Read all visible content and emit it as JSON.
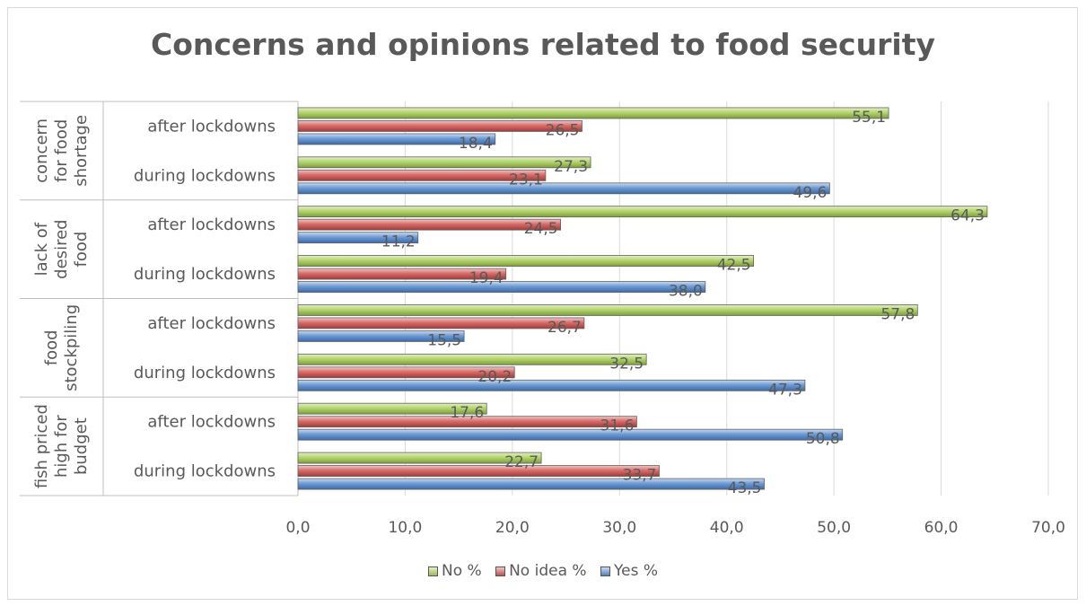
{
  "chart_data": {
    "type": "bar",
    "orientation": "horizontal",
    "title": "Concerns and opinions related to food security",
    "groups": [
      {
        "label": "concern for food shortage",
        "lines": [
          "concern",
          "for food",
          "shortage"
        ],
        "categories": [
          "after lockdowns",
          "during lockdowns"
        ]
      },
      {
        "label": "lack of desired food",
        "lines": [
          "lack of",
          "desired",
          "food"
        ],
        "categories": [
          "after lockdowns",
          "during lockdowns"
        ]
      },
      {
        "label": "food stockpiling",
        "lines": [
          "food",
          "stockpiling"
        ],
        "categories": [
          "after lockdowns",
          "during lockdowns"
        ]
      },
      {
        "label": "fish priced high for budget",
        "lines": [
          "fish priced",
          "high for",
          "budget"
        ],
        "categories": [
          "after lockdowns",
          "during lockdowns"
        ]
      }
    ],
    "series": [
      {
        "name": "No %",
        "color": "#9bbb59",
        "values": [
          55.1,
          27.3,
          64.3,
          42.5,
          57.8,
          32.5,
          17.6,
          22.7
        ],
        "labels": [
          "55,1",
          "27,3",
          "64,3",
          "42,5",
          "57,8",
          "32,5",
          "17,6",
          "22,7"
        ]
      },
      {
        "name": "No idea %",
        "color": "#c0504d",
        "values": [
          26.5,
          23.1,
          24.5,
          19.4,
          26.7,
          20.2,
          31.6,
          33.7
        ],
        "labels": [
          "26,5",
          "23,1",
          "24,5",
          "19,4",
          "26,7",
          "20,2",
          "31,6",
          "33,7"
        ]
      },
      {
        "name": "Yes %",
        "color": "#4f81bd",
        "values": [
          18.4,
          49.6,
          11.2,
          38.0,
          15.5,
          47.3,
          50.8,
          43.5
        ],
        "labels": [
          "18,4",
          "49,6",
          "11,2",
          "38,0",
          "15,5",
          "47,3",
          "50,8",
          "43,5"
        ]
      }
    ],
    "xlim": [
      0,
      70
    ],
    "xticks": [
      0,
      10,
      20,
      30,
      40,
      50,
      60,
      70
    ],
    "xtick_labels": [
      "0,0",
      "10,0",
      "20,0",
      "30,0",
      "40,0",
      "50,0",
      "60,0",
      "70,0"
    ],
    "grid": true,
    "legend_position": "bottom"
  }
}
